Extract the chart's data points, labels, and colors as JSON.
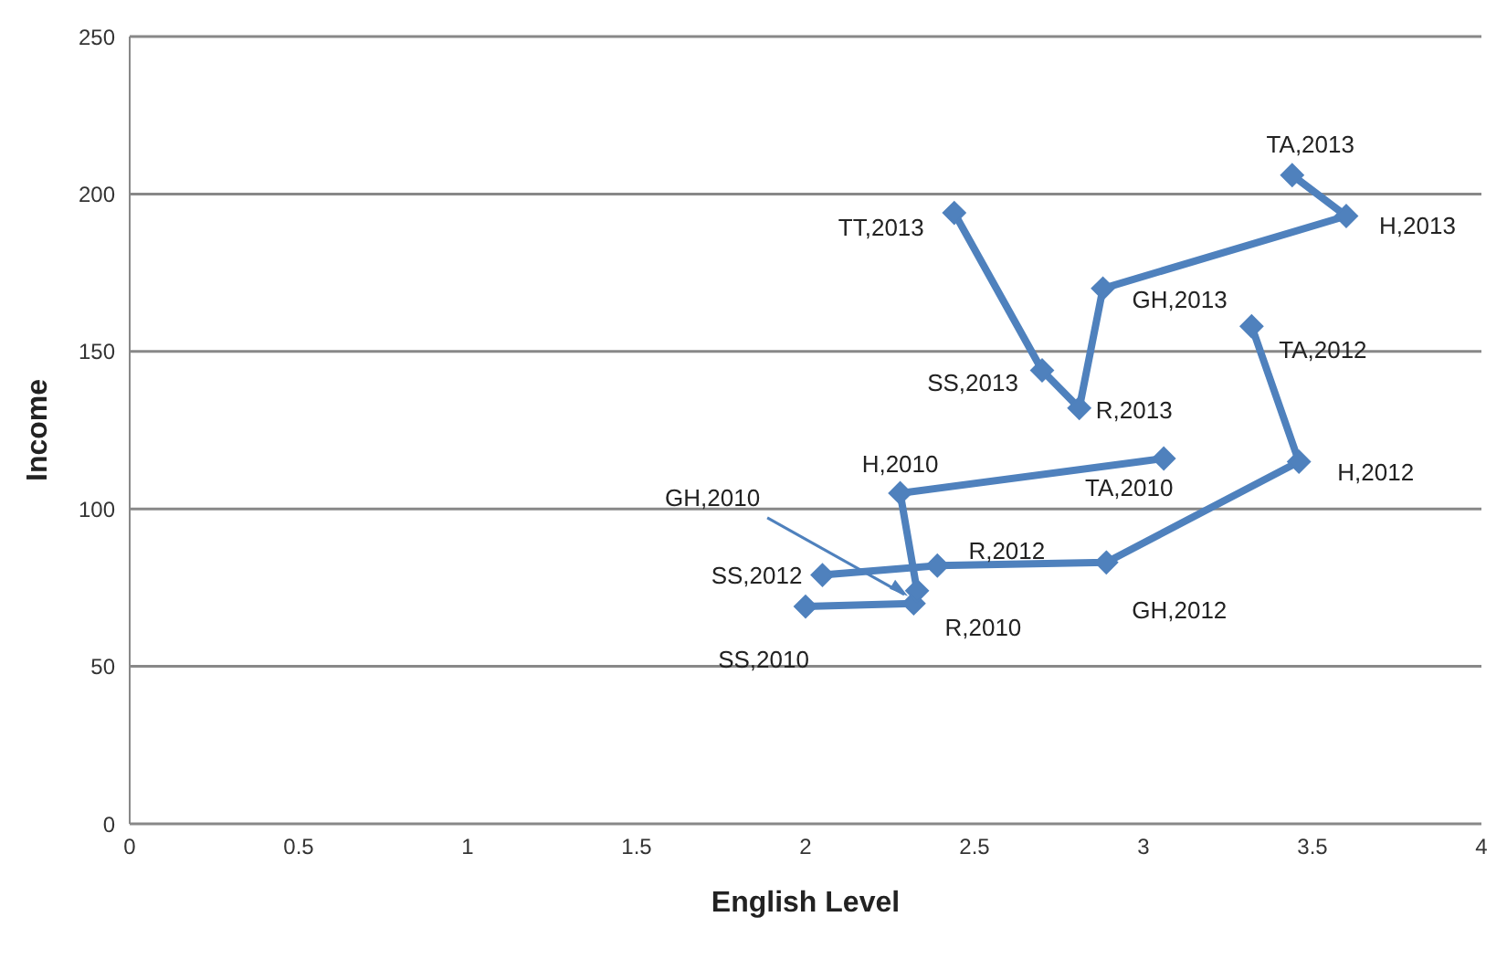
{
  "chart_data": {
    "type": "line",
    "xlabel": "English Level",
    "ylabel": "Income",
    "xlim": [
      0,
      4
    ],
    "xticks": [
      0,
      0.5,
      1,
      1.5,
      2,
      2.5,
      3,
      3.5,
      4
    ],
    "ylim": [
      0,
      250
    ],
    "yticks": [
      0,
      50,
      100,
      150,
      200,
      250
    ],
    "grid": "y",
    "marker": "diamond",
    "line_style": "solid",
    "series": [
      {
        "color": "#4f81bd",
        "x": [
          2.0,
          2.32,
          2.33,
          2.28,
          3.06
        ],
        "values": [
          69,
          70,
          74,
          105,
          116
        ]
      },
      {
        "color": "#4f81bd",
        "x": [
          2.05,
          2.39,
          2.89,
          3.46,
          3.32
        ],
        "values": [
          79,
          82,
          83,
          115,
          158
        ]
      },
      {
        "color": "#4f81bd",
        "x": [
          2.44,
          2.7,
          2.81,
          2.88,
          3.6,
          3.44
        ],
        "values": [
          194,
          144,
          132,
          170,
          193,
          206
        ]
      }
    ],
    "annotations": [
      {
        "text": "SS,2010",
        "x": 2.0,
        "y": 69
      },
      {
        "text": "R,2010",
        "x": 2.32,
        "y": 70
      },
      {
        "text": "GH,2010",
        "x": 2.33,
        "y": 74
      },
      {
        "text": "H,2010",
        "x": 2.28,
        "y": 105
      },
      {
        "text": "TA,2010",
        "x": 3.06,
        "y": 116
      },
      {
        "text": "SS,2012",
        "x": 2.05,
        "y": 79
      },
      {
        "text": "R,2012",
        "x": 2.39,
        "y": 82
      },
      {
        "text": "GH,2012",
        "x": 2.89,
        "y": 83
      },
      {
        "text": "H,2012",
        "x": 3.46,
        "y": 115
      },
      {
        "text": "TA,2012",
        "x": 3.32,
        "y": 158
      },
      {
        "text": "TT,2013",
        "x": 2.44,
        "y": 194
      },
      {
        "text": "SS,2013",
        "x": 2.7,
        "y": 144
      },
      {
        "text": "R,2013",
        "x": 2.81,
        "y": 132
      },
      {
        "text": "GH,2013",
        "x": 2.88,
        "y": 170
      },
      {
        "text": "H,2013",
        "x": 3.6,
        "y": 193
      },
      {
        "text": "TA,2013",
        "x": 3.44,
        "y": 206
      }
    ]
  }
}
